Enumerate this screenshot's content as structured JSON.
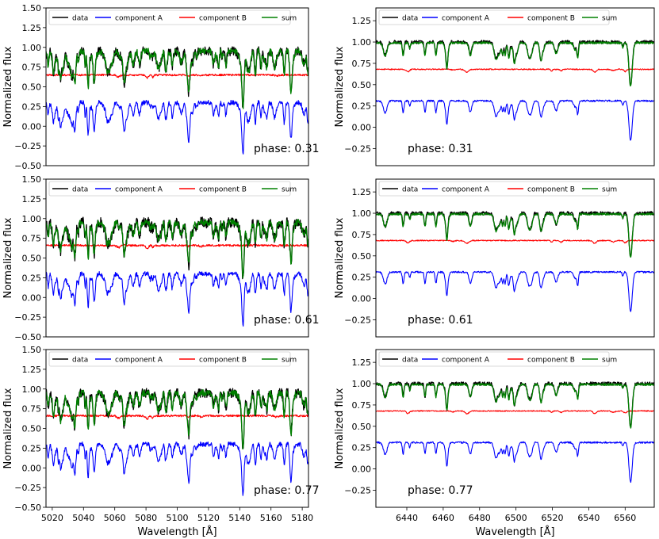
{
  "legend_labels": [
    "data",
    "component A",
    "component B",
    "sum"
  ],
  "colors": {
    "data": "#000000",
    "component A": "#0000ff",
    "component B": "#ff0000",
    "sum": "#008000"
  },
  "chart_data": [
    {
      "type": "line",
      "panel": "top-left",
      "xlabel": "",
      "ylabel": "Normalized flux",
      "xlim": [
        5016,
        5184
      ],
      "ylim": [
        -0.5,
        1.5
      ],
      "xticks": [],
      "yticks": [
        -0.5,
        -0.25,
        0.0,
        0.25,
        0.5,
        0.75,
        1.0,
        1.25,
        1.5
      ],
      "ytick_labels": [
        "−0.50",
        "−0.25",
        "0.00",
        "0.25",
        "0.50",
        "0.75",
        "1.00",
        "1.25",
        "1.50"
      ],
      "annotation": "phase: 0.31",
      "legend": "top",
      "series": [
        {
          "name": "data",
          "level": 0.95,
          "noise": 0.06
        },
        {
          "name": "component A",
          "level": 0.3,
          "noise": 0.03
        },
        {
          "name": "component B",
          "level": 0.65,
          "noise": 0.012
        },
        {
          "name": "sum",
          "level": 0.95,
          "noise": 0.04
        }
      ]
    },
    {
      "type": "line",
      "panel": "top-right",
      "xlabel": "",
      "ylabel": "Normalized flux",
      "xlim": [
        6423,
        6576
      ],
      "ylim": [
        -0.45,
        1.4
      ],
      "xticks": [],
      "yticks": [
        -0.25,
        0.0,
        0.25,
        0.5,
        0.75,
        1.0,
        1.25
      ],
      "ytick_labels": [
        "−0.25",
        "0.00",
        "0.25",
        "0.50",
        "0.75",
        "1.00",
        "1.25"
      ],
      "annotation": "phase: 0.31",
      "legend": "top",
      "series": [
        {
          "name": "data",
          "level": 1.0,
          "noise": 0.02
        },
        {
          "name": "component A",
          "level": 0.31,
          "noise": 0.01
        },
        {
          "name": "component B",
          "level": 0.68,
          "noise": 0.006
        },
        {
          "name": "sum",
          "level": 0.99,
          "noise": 0.012
        }
      ]
    },
    {
      "type": "line",
      "panel": "middle-left",
      "xlabel": "",
      "ylabel": "Normalized flux",
      "xlim": [
        5016,
        5184
      ],
      "ylim": [
        -0.5,
        1.5
      ],
      "xticks": [],
      "yticks": [
        -0.5,
        -0.25,
        0.0,
        0.25,
        0.5,
        0.75,
        1.0,
        1.25,
        1.5
      ],
      "ytick_labels": [
        "−0.50",
        "−0.25",
        "0.00",
        "0.25",
        "0.50",
        "0.75",
        "1.00",
        "1.25",
        "1.50"
      ],
      "annotation": "phase: 0.61",
      "legend": "top",
      "series": [
        {
          "name": "data",
          "level": 0.95,
          "noise": 0.07
        },
        {
          "name": "component A",
          "level": 0.3,
          "noise": 0.03
        },
        {
          "name": "component B",
          "level": 0.66,
          "noise": 0.012
        },
        {
          "name": "sum",
          "level": 0.95,
          "noise": 0.04
        }
      ]
    },
    {
      "type": "line",
      "panel": "middle-right",
      "xlabel": "",
      "ylabel": "Normalized flux",
      "xlim": [
        6423,
        6576
      ],
      "ylim": [
        -0.45,
        1.4
      ],
      "xticks": [],
      "yticks": [
        -0.25,
        0.0,
        0.25,
        0.5,
        0.75,
        1.0,
        1.25
      ],
      "ytick_labels": [
        "−0.25",
        "0.00",
        "0.25",
        "0.50",
        "0.75",
        "1.00",
        "1.25"
      ],
      "annotation": "phase: 0.61",
      "legend": "top",
      "series": [
        {
          "name": "data",
          "level": 1.0,
          "noise": 0.02
        },
        {
          "name": "component A",
          "level": 0.31,
          "noise": 0.01
        },
        {
          "name": "component B",
          "level": 0.68,
          "noise": 0.006
        },
        {
          "name": "sum",
          "level": 0.99,
          "noise": 0.012
        }
      ]
    },
    {
      "type": "line",
      "panel": "bottom-left",
      "xlabel": "Wavelength [Å]",
      "ylabel": "Normalized flux",
      "xlim": [
        5016,
        5184
      ],
      "ylim": [
        -0.5,
        1.5
      ],
      "xticks": [
        5020,
        5040,
        5060,
        5080,
        5100,
        5120,
        5140,
        5160,
        5180
      ],
      "yticks": [
        -0.5,
        -0.25,
        0.0,
        0.25,
        0.5,
        0.75,
        1.0,
        1.25,
        1.5
      ],
      "ytick_labels": [
        "−0.50",
        "−0.25",
        "0.00",
        "0.25",
        "0.50",
        "0.75",
        "1.00",
        "1.25",
        "1.50"
      ],
      "annotation": "phase: 0.77",
      "legend": "top",
      "series": [
        {
          "name": "data",
          "level": 0.95,
          "noise": 0.06
        },
        {
          "name": "component A",
          "level": 0.3,
          "noise": 0.03
        },
        {
          "name": "component B",
          "level": 0.66,
          "noise": 0.012
        },
        {
          "name": "sum",
          "level": 0.95,
          "noise": 0.04
        }
      ]
    },
    {
      "type": "line",
      "panel": "bottom-right",
      "xlabel": "Wavelength [Å]",
      "ylabel": "Normalized flux",
      "xlim": [
        6423,
        6576
      ],
      "ylim": [
        -0.45,
        1.4
      ],
      "xticks": [
        6440,
        6460,
        6480,
        6500,
        6520,
        6540,
        6560
      ],
      "yticks": [
        -0.25,
        0.0,
        0.25,
        0.5,
        0.75,
        1.0,
        1.25
      ],
      "ytick_labels": [
        "−0.25",
        "0.00",
        "0.25",
        "0.50",
        "0.75",
        "1.00",
        "1.25"
      ],
      "annotation": "phase: 0.77",
      "legend": "top",
      "series": [
        {
          "name": "data",
          "level": 1.0,
          "noise": 0.02
        },
        {
          "name": "component A",
          "level": 0.31,
          "noise": 0.01
        },
        {
          "name": "component B",
          "level": 0.68,
          "noise": 0.006
        },
        {
          "name": "sum",
          "level": 0.99,
          "noise": 0.012
        }
      ]
    }
  ]
}
